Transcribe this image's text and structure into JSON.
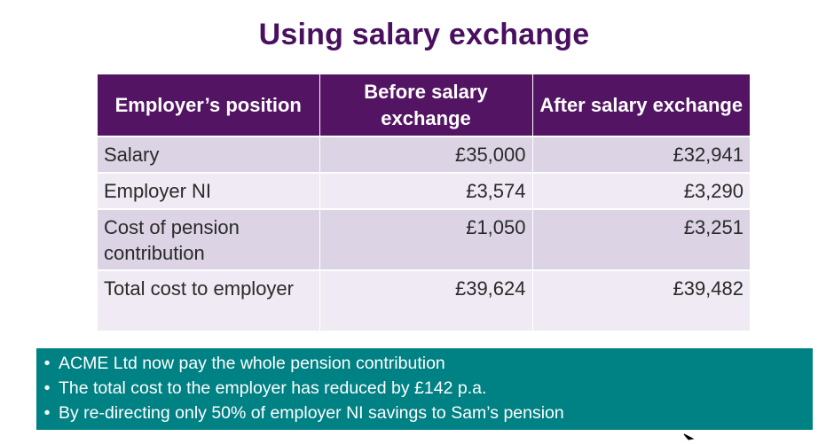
{
  "slide": {
    "title": "Using salary exchange"
  },
  "table": {
    "headers": [
      "Employer’s position",
      "Before salary exchange",
      "After salary exchange"
    ],
    "rows": [
      {
        "label": "Salary",
        "before": "£35,000",
        "after": "£32,941"
      },
      {
        "label": "Employer NI",
        "before": "£3,574",
        "after": "£3,290"
      },
      {
        "label": "Cost of pension contribution",
        "before": "£1,050",
        "after": "£3,251"
      },
      {
        "label": "Total cost to employer",
        "before": "£39,624",
        "after": "£39,482"
      }
    ]
  },
  "notes": {
    "bullet_glyph": "•",
    "items": [
      "ACME Ltd now pay the whole pension contribution",
      "The total cost to the employer has reduced by £142 p.a.",
      "By re-directing only 50% of employer NI savings to Sam’s pension"
    ]
  },
  "colors": {
    "title": "#4a1060",
    "header_bg": "#531464",
    "row_odd_bg": "#dcd3e4",
    "row_even_bg": "#efeaf3",
    "notes_bg": "#008184"
  }
}
